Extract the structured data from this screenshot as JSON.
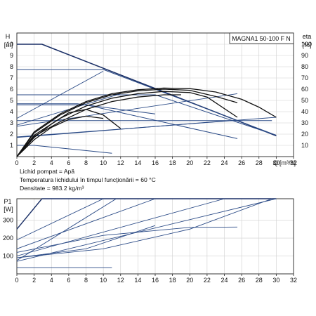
{
  "chart_data": [
    {
      "type": "line",
      "title": "MAGNA1 50-100 F N",
      "ylabel": "H",
      "yunit": "[m]",
      "ylabel_right": "eta",
      "yunit_right": "[%]",
      "xlabel": "Q",
      "xunit": "[m³/h]",
      "xlim": [
        0,
        32
      ],
      "ylim": [
        0,
        11
      ],
      "ylim_right": [
        0,
        110
      ],
      "x_ticks": [
        "0",
        "2",
        "4",
        "6",
        "8",
        "10",
        "12",
        "14",
        "16",
        "18",
        "20",
        "22",
        "24",
        "26",
        "28",
        "30",
        "32"
      ],
      "y_ticks": [
        "1",
        "2",
        "3",
        "4",
        "5",
        "6",
        "7",
        "8",
        "9",
        "10"
      ],
      "y_ticks_right": [
        "10",
        "20",
        "30",
        "40",
        "50",
        "60",
        "70",
        "80",
        "90",
        "100"
      ],
      "grid": true,
      "curves": [
        {
          "role": "pump-head-max",
          "x": [
            0,
            2.9,
            30
          ],
          "y": [
            10,
            10,
            1.85
          ]
        },
        {
          "role": "pump-head",
          "x": [
            0,
            10,
            30
          ],
          "y": [
            7.75,
            7.75,
            1.9
          ]
        },
        {
          "role": "pump-head",
          "x": [
            0,
            16,
            30
          ],
          "y": [
            5.5,
            5.5,
            1.9
          ]
        },
        {
          "role": "pump-head",
          "x": [
            0,
            7,
            16
          ],
          "y": [
            4.7,
            4.7,
            3.8
          ]
        },
        {
          "role": "pump-head",
          "x": [
            0,
            8,
            25.5
          ],
          "y": [
            4.6,
            4.6,
            1.6
          ]
        },
        {
          "role": "pump-head",
          "x": [
            0,
            25.5
          ],
          "y": [
            3.2,
            3.2
          ]
        },
        {
          "role": "pump-head",
          "x": [
            0,
            24.5,
            29.5
          ],
          "y": [
            1.7,
            3.2,
            3.2
          ]
        },
        {
          "role": "pump-head-min",
          "x": [
            0,
            2,
            11
          ],
          "y": [
            1,
            1,
            0.3
          ]
        },
        {
          "role": "system-curve",
          "x": [
            0,
            10
          ],
          "y": [
            3.4,
            7.6
          ]
        },
        {
          "role": "system-curve",
          "x": [
            0,
            12
          ],
          "y": [
            2.8,
            5.6
          ]
        },
        {
          "role": "system-curve",
          "x": [
            0,
            25.5
          ],
          "y": [
            2.7,
            5.6
          ]
        },
        {
          "role": "system-curve",
          "x": [
            0,
            30
          ],
          "y": [
            1.75,
            3.5
          ]
        },
        {
          "role": "efficiency",
          "x": [
            0,
            2,
            5,
            8,
            11,
            14,
            17,
            20,
            23,
            26,
            28,
            30
          ],
          "y": [
            0,
            22,
            38,
            49,
            56,
            59.5,
            61,
            60.5,
            57.5,
            51,
            44,
            35
          ]
        },
        {
          "role": "efficiency",
          "x": [
            0,
            2,
            5,
            8,
            11,
            14,
            17,
            20,
            23,
            25.5
          ],
          "y": [
            0,
            21,
            37,
            48,
            55,
            58.5,
            60,
            59,
            53.5,
            48
          ]
        },
        {
          "role": "efficiency",
          "x": [
            0,
            2,
            5,
            8,
            11,
            14,
            17,
            20,
            22,
            25.5
          ],
          "y": [
            0,
            19,
            34,
            45,
            52,
            56,
            58,
            57,
            53,
            35
          ]
        },
        {
          "role": "efficiency",
          "x": [
            0,
            2,
            5,
            8,
            11,
            14,
            17,
            19
          ],
          "y": [
            0,
            18,
            31,
            42,
            49,
            53,
            55,
            55
          ]
        },
        {
          "role": "efficiency",
          "x": [
            0,
            2,
            4,
            6,
            8,
            10,
            12
          ],
          "y": [
            0,
            17,
            29,
            39,
            42,
            37,
            25
          ]
        },
        {
          "role": "efficiency",
          "x": [
            0,
            2,
            4,
            6,
            8,
            10
          ],
          "y": [
            0,
            15,
            26,
            33,
            36,
            34
          ]
        }
      ]
    },
    {
      "type": "line",
      "ylabel": "P1",
      "yunit": "[W]",
      "xlim": [
        0,
        32
      ],
      "ylim": [
        0,
        420
      ],
      "x_ticks": [
        "0",
        "2",
        "4",
        "6",
        "8",
        "10",
        "12",
        "14",
        "16",
        "18",
        "20",
        "22",
        "24",
        "26",
        "28",
        "30",
        "32"
      ],
      "y_ticks": [
        "100",
        "200",
        "300"
      ],
      "grid": true,
      "curves": [
        {
          "role": "power-max",
          "x": [
            0,
            2.9,
            30
          ],
          "y": [
            250,
            420,
            420
          ]
        },
        {
          "role": "power",
          "x": [
            0,
            10
          ],
          "y": [
            190,
            420
          ]
        },
        {
          "role": "power",
          "x": [
            0,
            16
          ],
          "y": [
            140,
            420
          ]
        },
        {
          "role": "power",
          "x": [
            0,
            24
          ],
          "y": [
            100,
            420
          ]
        },
        {
          "role": "power",
          "x": [
            0,
            30
          ],
          "y": [
            70,
            420
          ]
        },
        {
          "role": "power",
          "x": [
            0,
            10,
            20,
            25.5
          ],
          "y": [
            120,
            215,
            260,
            262
          ]
        },
        {
          "role": "power",
          "x": [
            0,
            8,
            16
          ],
          "y": [
            90,
            140,
            270
          ]
        },
        {
          "role": "power",
          "x": [
            0,
            10,
            20,
            29.5
          ],
          "y": [
            90,
            140,
            250,
            420
          ]
        },
        {
          "role": "power",
          "x": [
            0,
            11.5
          ],
          "y": [
            75,
            420
          ]
        },
        {
          "role": "power-min",
          "x": [
            0,
            2,
            11
          ],
          "y": [
            35,
            35,
            35
          ]
        }
      ]
    }
  ],
  "medium": {
    "line1": "Lichid pompat = Apă",
    "line2": "Temperatura lichidului în timpul funcţionării = 60 °C",
    "line3": "Densitate = 983.2 kg/m³"
  }
}
